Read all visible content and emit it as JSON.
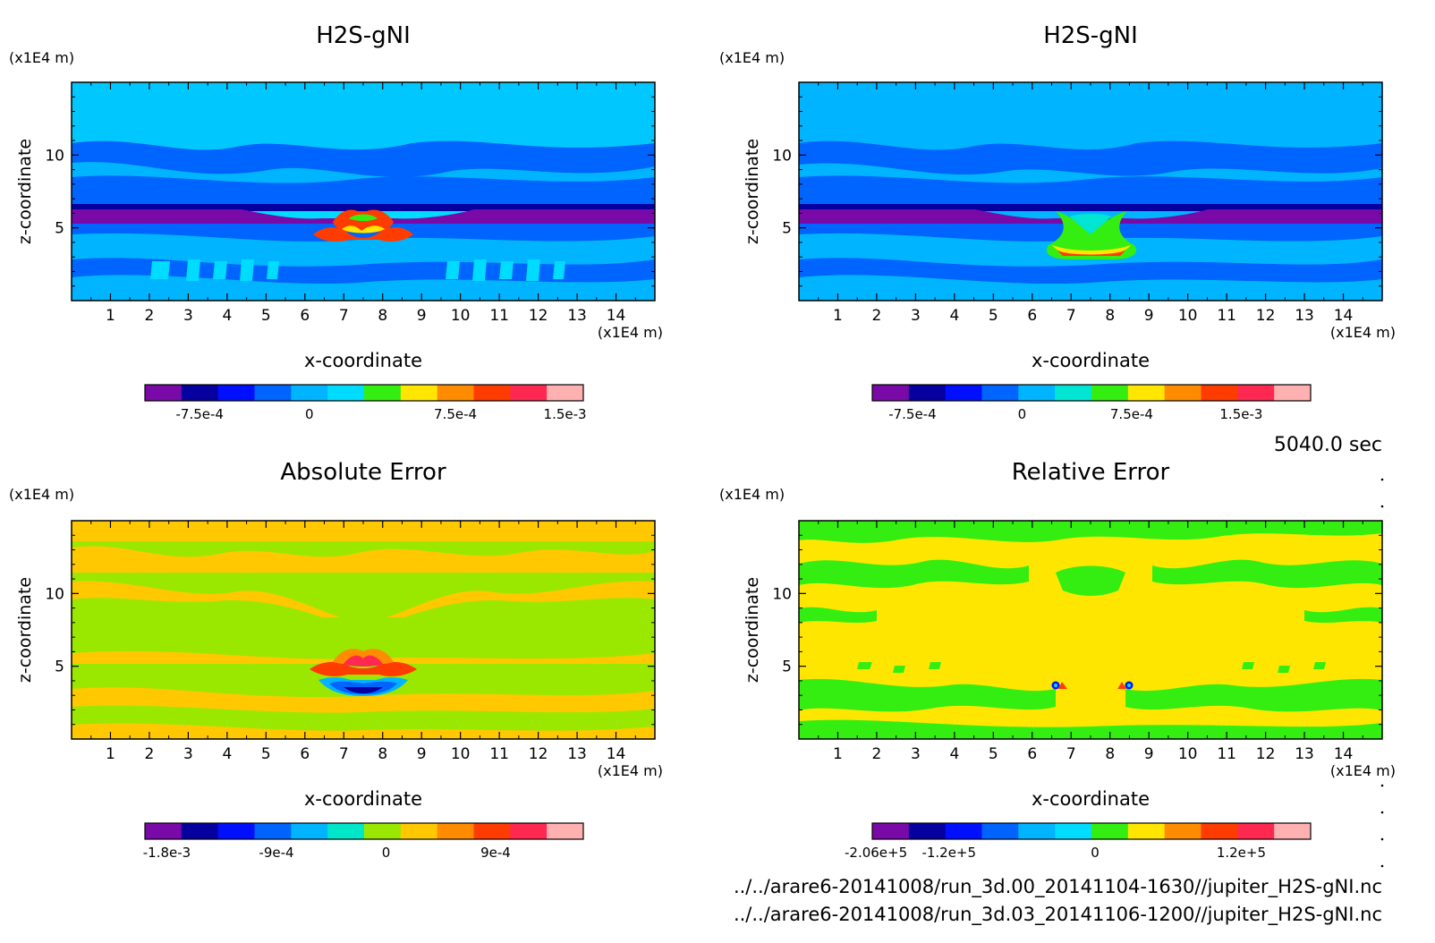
{
  "timestamp": "5040.0 sec",
  "files": [
    "../../arare6-20141008/run_3d.00_20141104-1630//jupiter_H2S-gNI.nc",
    "../../arare6-20141008/run_3d.03_20141106-1200//jupiter_H2S-gNI.nc"
  ],
  "chart_data": [
    {
      "type": "heatmap",
      "title": "H2S-gNI",
      "xlabel": "x-coordinate",
      "ylabel": "z-coordinate",
      "x_unit": "(x1E4 m)",
      "y_unit": "(x1E4 m)",
      "xlim": [
        0,
        15
      ],
      "ylim": [
        0,
        15
      ],
      "xticks": [
        "1",
        "2",
        "3",
        "4",
        "5",
        "6",
        "7",
        "8",
        "9",
        "10",
        "11",
        "12",
        "13",
        "14"
      ],
      "yticks": [
        "5",
        "10"
      ],
      "colorbar": {
        "colors": [
          "#7a0aa8",
          "#05009e",
          "#0010ff",
          "#0064ff",
          "#00b4ff",
          "#00dcff",
          "#33ee10",
          "#ffe600",
          "#ff8c00",
          "#ff3c00",
          "#ff2850",
          "#ffb0b0"
        ],
        "labels": [
          "-7.5e-4",
          "0",
          "7.5e-4",
          "1.5e-3"
        ]
      }
    },
    {
      "type": "heatmap",
      "title": "H2S-gNI",
      "xlabel": "x-coordinate",
      "ylabel": "z-coordinate",
      "x_unit": "(x1E4 m)",
      "y_unit": "(x1E4 m)",
      "xlim": [
        0,
        15
      ],
      "ylim": [
        0,
        15
      ],
      "xticks": [
        "1",
        "2",
        "3",
        "4",
        "5",
        "6",
        "7",
        "8",
        "9",
        "10",
        "11",
        "12",
        "13",
        "14"
      ],
      "yticks": [
        "5",
        "10"
      ],
      "colorbar": {
        "colors": [
          "#7a0aa8",
          "#05009e",
          "#0010ff",
          "#0064ff",
          "#00b4ff",
          "#00e6d2",
          "#33ee10",
          "#ffe600",
          "#ff8c00",
          "#ff3c00",
          "#ff2850",
          "#ffb0b0"
        ],
        "labels": [
          "-7.5e-4",
          "0",
          "7.5e-4",
          "1.5e-3"
        ]
      }
    },
    {
      "type": "heatmap",
      "title": "Absolute Error",
      "xlabel": "x-coordinate",
      "ylabel": "z-coordinate",
      "x_unit": "(x1E4 m)",
      "y_unit": "(x1E4 m)",
      "xlim": [
        0,
        15
      ],
      "ylim": [
        0,
        15
      ],
      "xticks": [
        "1",
        "2",
        "3",
        "4",
        "5",
        "6",
        "7",
        "8",
        "9",
        "10",
        "11",
        "12",
        "13",
        "14"
      ],
      "yticks": [
        "5",
        "10"
      ],
      "colorbar": {
        "colors": [
          "#7a0aa8",
          "#05009e",
          "#0010ff",
          "#0064ff",
          "#00b4ff",
          "#00e6c8",
          "#9ae800",
          "#ffc800",
          "#ff8c00",
          "#ff3c00",
          "#ff2850",
          "#ffb0b0"
        ],
        "labels": [
          "-1.8e-3",
          "-9e-4",
          "0",
          "9e-4"
        ]
      }
    },
    {
      "type": "heatmap",
      "title": "Relative Error",
      "xlabel": "x-coordinate",
      "ylabel": "z-coordinate",
      "x_unit": "(x1E4 m)",
      "y_unit": "(x1E4 m)",
      "xlim": [
        0,
        15
      ],
      "ylim": [
        0,
        15
      ],
      "xticks": [
        "1",
        "2",
        "3",
        "4",
        "5",
        "6",
        "7",
        "8",
        "9",
        "10",
        "11",
        "12",
        "13",
        "14"
      ],
      "yticks": [
        "5",
        "10"
      ],
      "colorbar": {
        "colors": [
          "#7a0aa8",
          "#05009e",
          "#0010ff",
          "#0064ff",
          "#00b4ff",
          "#00dcff",
          "#33ee10",
          "#ffe600",
          "#ff8c00",
          "#ff3c00",
          "#ff2850",
          "#ffb0b0"
        ],
        "labels": [
          "-2.06e+5",
          "-1.2e+5",
          "0",
          "1.2e+5"
        ]
      }
    }
  ]
}
